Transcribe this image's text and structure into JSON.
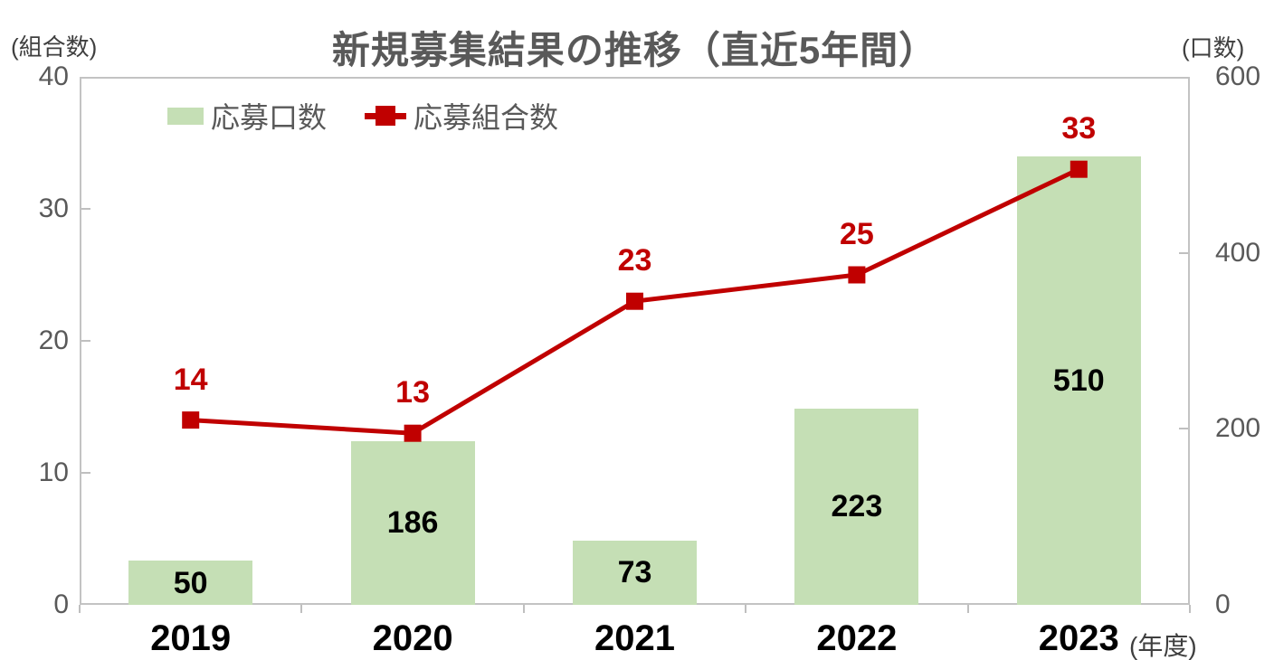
{
  "chart_data": {
    "type": "bar",
    "subtype": "bar+line combo, dual axis",
    "title": "新規募集結果の推移（直近5年間）",
    "categories": [
      "2019",
      "2020",
      "2021",
      "2022",
      "2023"
    ],
    "series": [
      {
        "name": "応募口数",
        "type": "bar",
        "axis": "right",
        "color": "#C5DFB5",
        "label_color": "#000000",
        "values": [
          50,
          186,
          73,
          223,
          510
        ]
      },
      {
        "name": "応募組合数",
        "type": "line",
        "axis": "left",
        "color": "#C00000",
        "marker": "square",
        "label_color": "#C00000",
        "values": [
          14,
          13,
          23,
          25,
          33
        ]
      }
    ],
    "left_axis": {
      "unit_label": "(組合数)",
      "range": [
        0,
        40
      ],
      "ticks": [
        0,
        10,
        20,
        30,
        40
      ]
    },
    "right_axis": {
      "unit_label": "(口数)",
      "range": [
        0,
        600
      ],
      "ticks": [
        0,
        200,
        400,
        600
      ]
    },
    "x_axis": {
      "unit_label": "(年度)"
    },
    "legend": {
      "position": "top-left-inside"
    },
    "grid": "off",
    "data_labels": {
      "bar": "inside-center black bold",
      "line": "above-marker red bold"
    }
  },
  "colors": {
    "bar_fill": "#C5DFB5",
    "line": "#C00000",
    "axis_text": "#595959",
    "title_text": "#595959",
    "category_text": "#000000",
    "plot_border": "#C3C3C3",
    "tick": "#BFBFBF",
    "background": "#FFFFFF"
  }
}
